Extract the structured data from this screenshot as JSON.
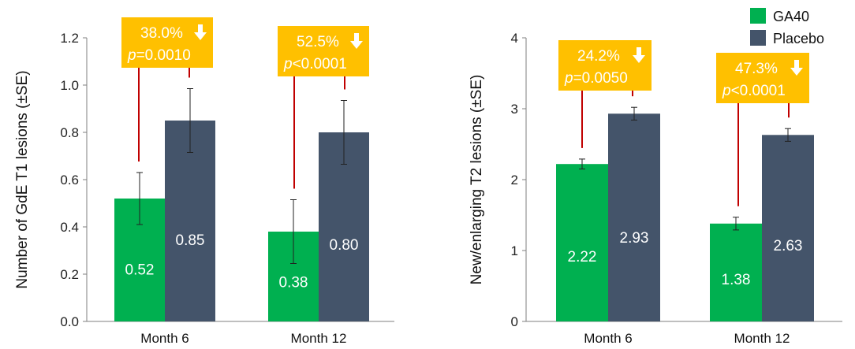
{
  "chart_data": [
    {
      "type": "bar",
      "categories": [
        "Month 6",
        "Month 12"
      ],
      "series": [
        {
          "name": "GA40",
          "values": [
            0.52,
            0.38
          ],
          "se": [
            0.11,
            0.135
          ]
        },
        {
          "name": "Placebo",
          "values": [
            0.85,
            0.8
          ],
          "se": [
            0.135,
            0.135
          ]
        }
      ],
      "value_labels": [
        [
          "0.52",
          "0.38"
        ],
        [
          "0.85",
          "0.80"
        ]
      ],
      "ylabel": "Number of GdE T1 lesions (±SE)",
      "ylim": [
        0,
        1.2
      ],
      "yticks": [
        "0.0",
        "0.2",
        "0.4",
        "0.6",
        "0.8",
        "1.0",
        "1.2"
      ],
      "annotations": [
        {
          "reduction": "38.0%",
          "p_prefix": "p",
          "p_rest": "=0.0010"
        },
        {
          "reduction": "52.5%",
          "p_prefix": "p",
          "p_rest": "<0.0001"
        }
      ]
    },
    {
      "type": "bar",
      "categories": [
        "Month 6",
        "Month 12"
      ],
      "series": [
        {
          "name": "GA40",
          "values": [
            2.22,
            1.38
          ],
          "se": [
            0.07,
            0.09
          ]
        },
        {
          "name": "Placebo",
          "values": [
            2.93,
            2.63
          ],
          "se": [
            0.09,
            0.09
          ]
        }
      ],
      "value_labels": [
        [
          "2.22",
          "1.38"
        ],
        [
          "2.93",
          "2.63"
        ]
      ],
      "ylabel": "New/enlarging T2 lesions (±SE)",
      "ylim": [
        0,
        4
      ],
      "yticks": [
        "0",
        "1",
        "2",
        "3",
        "4"
      ],
      "annotations": [
        {
          "reduction": "24.2%",
          "p_prefix": "p",
          "p_rest": "=0.0050"
        },
        {
          "reduction": "47.3%",
          "p_prefix": "p",
          "p_rest": "<0.0001"
        }
      ]
    }
  ],
  "legend": {
    "position": "top-right",
    "items": [
      {
        "label": "GA40",
        "color": "#00b050"
      },
      {
        "label": "Placebo",
        "color": "#44546a"
      }
    ]
  },
  "colors": {
    "ga40": "#00b050",
    "placebo": "#44546a",
    "annotation_box": "#ffc000",
    "connector": "#c00000",
    "axis": "#7f7f7f"
  }
}
